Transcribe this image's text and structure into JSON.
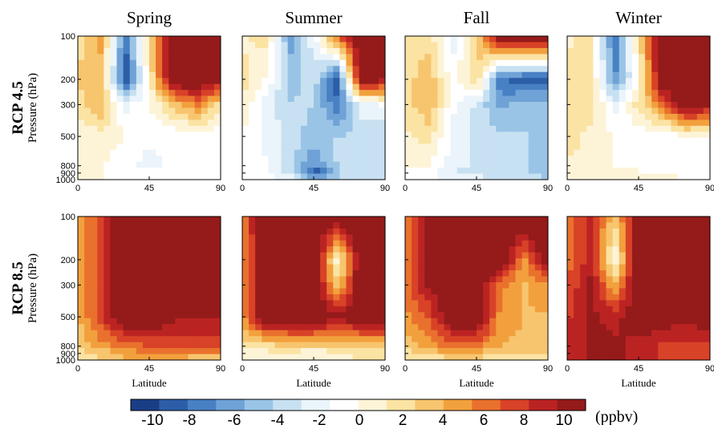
{
  "chart_data": {
    "type": "heatmap",
    "seasons": [
      "Spring",
      "Summer",
      "Fall",
      "Winter"
    ],
    "scenarios": [
      {
        "name": "RCP 4.5",
        "ylabel": "Pressure (hPa)"
      },
      {
        "name": "RCP 8.5",
        "ylabel": "Pressure (hPa)"
      }
    ],
    "xlabel": "Latitude",
    "x_ticks": [
      0,
      45,
      90
    ],
    "xlim": [
      0,
      90
    ],
    "y_ticks": [
      100,
      200,
      300,
      500,
      800,
      900,
      1000
    ],
    "ylim": [
      1000,
      100
    ],
    "colorbar": {
      "ticks": [
        -10,
        -8,
        -6,
        -4,
        -2,
        0,
        2,
        4,
        6,
        8,
        10
      ],
      "unit": "(ppbv)",
      "vmin": -11,
      "vmax": 11,
      "colors": [
        "#1a3e86",
        "#2c5ea8",
        "#4880c4",
        "#6fa2d6",
        "#9ac4e6",
        "#c7e1f2",
        "#eaf4fa",
        "#ffffff",
        "#fdf4d8",
        "#fbe3a3",
        "#f7c56e",
        "#f2a03d",
        "#e9712d",
        "#d84227",
        "#bb2323",
        "#951a1a"
      ]
    },
    "lat": [
      0,
      15,
      30,
      45,
      60,
      75,
      90
    ],
    "pressure": [
      100,
      200,
      300,
      500,
      800,
      900,
      1000
    ],
    "panels": [
      {
        "scenario": "RCP 4.5",
        "season": "Spring",
        "values": [
          [
            2,
            5,
            -8,
            3,
            12,
            12,
            12
          ],
          [
            3,
            3,
            -10,
            1,
            12,
            12,
            10
          ],
          [
            2,
            4,
            -2,
            0,
            3,
            6,
            2
          ],
          [
            0,
            1,
            0,
            -1,
            -1,
            -1,
            -1
          ],
          [
            0,
            0,
            -1,
            -2,
            -1,
            -1,
            -1
          ],
          [
            0,
            0,
            -1,
            -1,
            -1,
            -1,
            -1
          ],
          [
            0,
            0,
            -1,
            -1,
            -1,
            -1,
            0
          ]
        ]
      },
      {
        "scenario": "RCP 4.5",
        "season": "Summer",
        "values": [
          [
            1,
            2,
            -6,
            -2,
            7,
            12,
            12
          ],
          [
            2,
            0,
            -5,
            -3,
            -10,
            12,
            10
          ],
          [
            1,
            -2,
            -4,
            -4,
            -8,
            -2,
            -1
          ],
          [
            0,
            -2,
            -3,
            -5,
            -4,
            -4,
            -4
          ],
          [
            0,
            -1,
            -4,
            -7,
            -4,
            -4,
            -4
          ],
          [
            0,
            -1,
            -3,
            -10,
            -4,
            -4,
            -4
          ],
          [
            0,
            0,
            -2,
            -5,
            -4,
            -3,
            -2
          ]
        ]
      },
      {
        "scenario": "RCP 4.5",
        "season": "Fall",
        "values": [
          [
            2,
            2,
            -2,
            3,
            12,
            12,
            12
          ],
          [
            2,
            4,
            -1,
            3,
            -8,
            -9,
            -9
          ],
          [
            2,
            4,
            -1,
            -3,
            -6,
            -5,
            -5
          ],
          [
            1,
            2,
            -2,
            -3,
            -4,
            -4,
            -5
          ],
          [
            0,
            0,
            -2,
            -3,
            -4,
            -4,
            -5
          ],
          [
            0,
            -1,
            -3,
            -3,
            -4,
            -4,
            -5
          ],
          [
            0,
            -1,
            -2,
            -2,
            -3,
            -3,
            -4
          ]
        ]
      },
      {
        "scenario": "RCP 4.5",
        "season": "Winter",
        "values": [
          [
            1,
            2,
            -8,
            2,
            12,
            12,
            12
          ],
          [
            2,
            2,
            -7,
            0,
            12,
            12,
            12
          ],
          [
            2,
            2,
            -2,
            2,
            6,
            12,
            10
          ],
          [
            2,
            1,
            0,
            -1,
            -1,
            0,
            0
          ],
          [
            1,
            1,
            0,
            0,
            -1,
            -1,
            -1
          ],
          [
            1,
            1,
            0,
            0,
            0,
            -1,
            -1
          ],
          [
            1,
            1,
            0,
            1,
            1,
            0,
            0
          ]
        ]
      },
      {
        "scenario": "RCP 8.5",
        "season": "Spring",
        "values": [
          [
            4,
            8,
            12,
            12,
            12,
            12,
            12
          ],
          [
            4,
            8,
            12,
            12,
            12,
            12,
            12
          ],
          [
            4,
            8,
            12,
            12,
            12,
            12,
            12
          ],
          [
            4,
            8,
            12,
            12,
            10,
            10,
            10
          ],
          [
            3,
            5,
            6,
            7,
            7,
            7,
            7
          ],
          [
            2,
            3,
            5,
            5,
            5,
            5,
            5
          ],
          [
            2,
            3,
            4,
            4,
            4,
            3,
            3
          ]
        ]
      },
      {
        "scenario": "RCP 8.5",
        "season": "Summer",
        "values": [
          [
            6,
            12,
            12,
            12,
            12,
            12,
            12
          ],
          [
            5,
            12,
            12,
            12,
            0,
            12,
            12
          ],
          [
            5,
            12,
            12,
            12,
            3,
            12,
            12
          ],
          [
            5,
            12,
            12,
            12,
            10,
            12,
            12
          ],
          [
            2,
            2,
            3,
            3,
            3,
            3,
            3
          ],
          [
            1,
            1,
            1,
            0,
            1,
            1,
            2
          ],
          [
            1,
            1,
            1,
            1,
            1,
            2,
            3
          ]
        ]
      },
      {
        "scenario": "RCP 8.5",
        "season": "Fall",
        "values": [
          [
            6,
            10,
            12,
            12,
            12,
            12,
            12
          ],
          [
            6,
            10,
            12,
            12,
            12,
            5,
            12
          ],
          [
            6,
            10,
            12,
            12,
            6,
            4,
            5
          ],
          [
            5,
            7,
            12,
            12,
            5,
            4,
            4
          ],
          [
            3,
            5,
            6,
            6,
            4,
            4,
            4
          ],
          [
            2,
            3,
            4,
            4,
            3,
            3,
            3
          ],
          [
            1,
            2,
            2,
            2,
            2,
            2,
            2
          ]
        ]
      },
      {
        "scenario": "RCP 8.5",
        "season": "Winter",
        "values": [
          [
            6,
            9,
            3,
            12,
            12,
            12,
            12
          ],
          [
            6,
            9,
            0,
            12,
            12,
            12,
            12
          ],
          [
            7,
            10,
            4,
            12,
            12,
            12,
            12
          ],
          [
            8,
            10,
            9,
            11,
            11,
            10,
            11
          ],
          [
            8,
            10,
            10,
            9,
            8,
            8,
            8
          ],
          [
            8,
            10,
            10,
            9,
            8,
            7,
            8
          ],
          [
            8,
            10,
            10,
            9,
            8,
            7,
            8
          ]
        ]
      }
    ]
  }
}
